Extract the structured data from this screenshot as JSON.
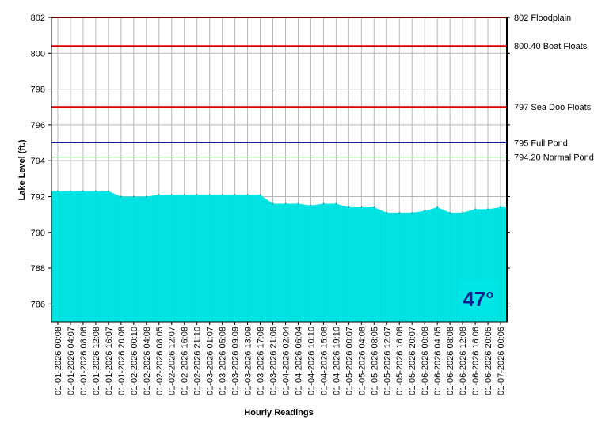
{
  "chart_data": {
    "type": "area",
    "xlabel": "Hourly Readings",
    "ylabel": "Lake Level (ft.)",
    "ylim": [
      785,
      802
    ],
    "yticks": [
      786,
      788,
      790,
      792,
      794,
      796,
      798,
      800,
      802
    ],
    "grid": true,
    "fill_color": "#00e5e5",
    "x_tick_labels": [
      "01-01-2026 00:08",
      "01-01-2026 04:07",
      "01-01-2026 08:06",
      "01-01-2026 12:08",
      "01-01-2026 16:07",
      "01-01-2026 20:08",
      "01-02-2026 00:10",
      "01-02-2026 04:08",
      "01-02-2026 08:05",
      "01-02-2026 12:07",
      "01-02-2026 16:08",
      "01-02-2026 21:10",
      "01-03-2026 01:07",
      "01-03-2026 05:08",
      "01-03-2026 09:09",
      "01-03-2026 13:09",
      "01-03-2026 17:08",
      "01-03-2026 21:08",
      "01-04-2026 02:04",
      "01-04-2026 06:04",
      "01-04-2026 10:10",
      "01-04-2026 15:08",
      "01-04-2026 19:10",
      "01-05-2026 00:07",
      "01-05-2026 04:08",
      "01-05-2026 08:05",
      "01-05-2026 12:07",
      "01-05-2026 16:08",
      "01-05-2026 20:07",
      "01-06-2026 00:08",
      "01-06-2026 04:05",
      "01-06-2026 08:08",
      "01-06-2026 12:08",
      "01-06-2026 16:06",
      "01-06-2026 20:05",
      "01-07-2026 00:06"
    ],
    "series": [
      {
        "values": [
          792.3,
          792.3,
          792.3,
          792.3,
          792.3,
          792.0,
          792.0,
          792.0,
          792.1,
          792.1,
          792.1,
          792.1,
          792.1,
          792.1,
          792.1,
          792.1,
          792.1,
          791.6,
          791.6,
          791.6,
          791.5,
          791.6,
          791.6,
          791.4,
          791.4,
          791.4,
          791.1,
          791.1,
          791.1,
          791.2,
          791.4,
          791.1,
          791.1,
          791.3,
          791.3,
          791.4
        ]
      }
    ],
    "reference_lines": [
      {
        "value": 802,
        "label": "802 Floodplain",
        "color": "#dd0000"
      },
      {
        "value": 800.4,
        "label": "800.40 Boat Floats",
        "color": "#dd0000"
      },
      {
        "value": 797,
        "label": "797 Sea Doo Floats",
        "color": "#dd0000"
      },
      {
        "value": 795,
        "label": "795 Full Pond",
        "color": "#1a1a9a"
      },
      {
        "value": 794.2,
        "label": "794.20 Normal Pond",
        "color": "#2e8b2e"
      }
    ]
  },
  "badge": {
    "temperature": "47°",
    "background": "#00e5e5",
    "text_color": "#0b1f8f"
  }
}
